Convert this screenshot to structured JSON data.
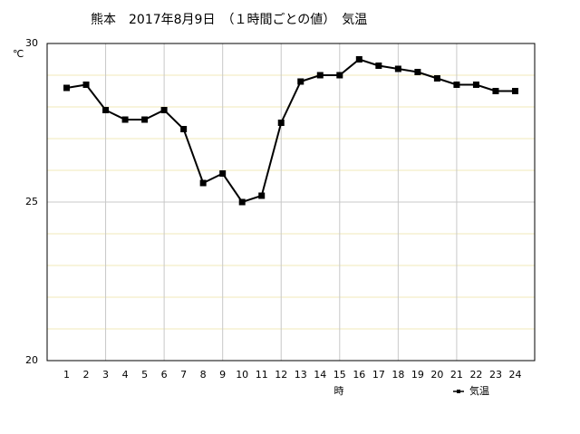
{
  "chart_data": {
    "type": "line",
    "title": "熊本　2017年8月9日　（１時間ごとの値）　気温",
    "y_label": "℃",
    "x_label": "時",
    "x": [
      1,
      2,
      3,
      4,
      5,
      6,
      7,
      8,
      9,
      10,
      11,
      12,
      13,
      14,
      15,
      16,
      17,
      18,
      19,
      20,
      21,
      22,
      23,
      24
    ],
    "series": [
      {
        "name": "気温",
        "color": "#000000",
        "values": [
          28.6,
          28.7,
          27.9,
          27.6,
          27.6,
          27.9,
          27.3,
          25.6,
          25.9,
          25.0,
          25.2,
          27.5,
          28.8,
          29.0,
          29.0,
          29.5,
          29.3,
          29.2,
          29.1,
          28.9,
          28.7,
          28.7,
          28.5,
          28.5
        ]
      }
    ],
    "xlim": [
      0,
      25
    ],
    "xticks": [
      1,
      2,
      3,
      4,
      5,
      6,
      7,
      8,
      9,
      10,
      11,
      12,
      13,
      14,
      15,
      16,
      17,
      18,
      19,
      20,
      21,
      22,
      23,
      24
    ],
    "ylim": [
      20,
      30
    ],
    "yticks": [
      20,
      25,
      30
    ],
    "xgrid": [
      3,
      6,
      9,
      12,
      15,
      18,
      21
    ],
    "ygrid_minor": [
      21,
      22,
      23,
      24,
      26,
      27,
      28,
      29
    ],
    "grid_color": "#c8c8c8",
    "minor_grid_color": "#f0e8b8",
    "legend": "bottom-right"
  }
}
